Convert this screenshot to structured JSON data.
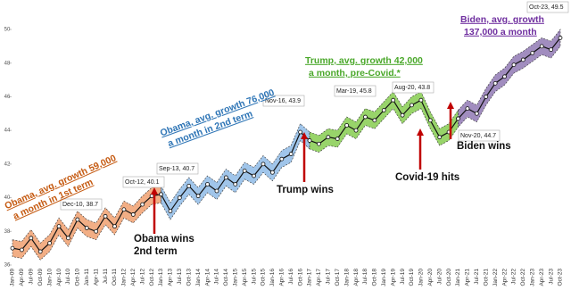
{
  "chart_data": {
    "type": "line",
    "categories": [
      "Jan-09",
      "Apr-09",
      "Jul-09",
      "Oct-09",
      "Jan-10",
      "Apr-10",
      "Jul-10",
      "Oct-10",
      "Jan-11",
      "Apr-11",
      "Jul-11",
      "Oct-11",
      "Jan-12",
      "Apr-12",
      "Jul-12",
      "Oct-12",
      "Jan-13",
      "Apr-13",
      "Jul-13",
      "Oct-13",
      "Jan-14",
      "Apr-14",
      "Jul-14",
      "Oct-14",
      "Jan-15",
      "Apr-15",
      "Jul-15",
      "Oct-15",
      "Jan-16",
      "Apr-16",
      "Jul-16",
      "Oct-16",
      "Jan-17",
      "Apr-17",
      "Jul-17",
      "Oct-17",
      "Jan-18",
      "Apr-18",
      "Jul-18",
      "Oct-18",
      "Jan-19",
      "Apr-19",
      "Jul-19",
      "Oct-19",
      "Jan-20",
      "Apr-20",
      "Jul-20",
      "Oct-20",
      "Jan-21",
      "Apr-21",
      "Jul-21",
      "Oct-21",
      "Jan-22",
      "Apr-22",
      "Jul-22",
      "Oct-22",
      "Jan-23",
      "Apr-23",
      "Jul-23",
      "Oct-23"
    ],
    "series": [
      {
        "color": "#f0a070",
        "values": [
          37.0,
          36.9,
          37.6,
          36.8,
          37.3,
          38.3,
          37.6,
          38.7,
          38.2,
          38.0,
          38.9,
          38.3,
          39.3,
          39.0,
          39.6,
          40.1,
          40.2,
          null,
          null,
          null,
          null,
          null,
          null,
          null,
          null,
          null,
          null,
          null,
          null,
          null,
          null,
          null,
          null,
          null,
          null,
          null,
          null,
          null,
          null,
          null,
          null,
          null,
          null,
          null,
          null,
          null,
          null,
          null,
          null,
          null,
          null,
          null,
          null,
          null,
          null,
          null,
          null,
          null,
          null,
          null
        ]
      },
      {
        "color": "#8fbbe6",
        "values": [
          null,
          null,
          null,
          null,
          null,
          null,
          null,
          null,
          null,
          null,
          null,
          null,
          null,
          null,
          null,
          null,
          40.2,
          39.2,
          40.0,
          40.7,
          40.1,
          40.8,
          40.4,
          41.2,
          40.8,
          41.6,
          41.3,
          42.0,
          41.5,
          42.3,
          42.6,
          43.9,
          43.4,
          null,
          null,
          null,
          null,
          null,
          null,
          null,
          null,
          null,
          null,
          null,
          null,
          null,
          null,
          null,
          null,
          null,
          null,
          null,
          null,
          null,
          null,
          null,
          null,
          null,
          null,
          null
        ]
      },
      {
        "color": "#86cc50",
        "values": [
          null,
          null,
          null,
          null,
          null,
          null,
          null,
          null,
          null,
          null,
          null,
          null,
          null,
          null,
          null,
          null,
          null,
          null,
          null,
          null,
          null,
          null,
          null,
          null,
          null,
          null,
          null,
          null,
          null,
          null,
          null,
          null,
          43.4,
          43.2,
          43.6,
          43.5,
          44.3,
          44.0,
          44.8,
          44.6,
          45.2,
          45.8,
          44.9,
          45.5,
          45.8,
          44.6,
          43.6,
          43.9,
          44.7,
          null,
          null,
          null,
          null,
          null,
          null,
          null,
          null,
          null,
          null,
          null
        ]
      },
      {
        "color": "#9079b4",
        "values": [
          null,
          null,
          null,
          null,
          null,
          null,
          null,
          null,
          null,
          null,
          null,
          null,
          null,
          null,
          null,
          null,
          null,
          null,
          null,
          null,
          null,
          null,
          null,
          null,
          null,
          null,
          null,
          null,
          null,
          null,
          null,
          null,
          null,
          null,
          null,
          null,
          null,
          null,
          null,
          null,
          null,
          null,
          null,
          null,
          null,
          null,
          null,
          null,
          44.7,
          45.3,
          45.0,
          46.0,
          46.8,
          47.2,
          47.9,
          48.2,
          48.6,
          49.0,
          48.8,
          49.5
        ]
      }
    ],
    "band": 0.5,
    "ylim": [
      36,
      50
    ],
    "yticks": [
      36,
      38,
      40,
      42,
      44,
      46,
      48,
      50
    ],
    "callouts": [
      "Dec-10,  38.7",
      "Oct-12,  40.1",
      "Sep-13,  40.7",
      "Nov-16,  43.9",
      "Mar-19,  45.8",
      "Aug-20,  43.8",
      "Nov-20,  44.7",
      "Oct-23,  49.5"
    ],
    "notes": [
      {
        "color": "#c55a11",
        "lines": [
          "Obama, avg. growth 59,000",
          "a month in 1st  term"
        ]
      },
      {
        "color": "#2e75b6",
        "lines": [
          "Obama, avg. growth 76,000",
          "a month in 2nd term"
        ]
      },
      {
        "color": "#4aa82a",
        "lines": [
          "Trump, avg. growth 42,000",
          "a month, pre-Covid.*"
        ]
      },
      {
        "color": "#7030a0",
        "lines": [
          "Biden, avg. growth",
          "137,000 a month"
        ]
      }
    ],
    "events": [
      [
        "Obama wins",
        "2nd term"
      ],
      [
        "Trump wins"
      ],
      [
        "Covid-19 hits"
      ],
      [
        "Biden wins"
      ]
    ]
  }
}
